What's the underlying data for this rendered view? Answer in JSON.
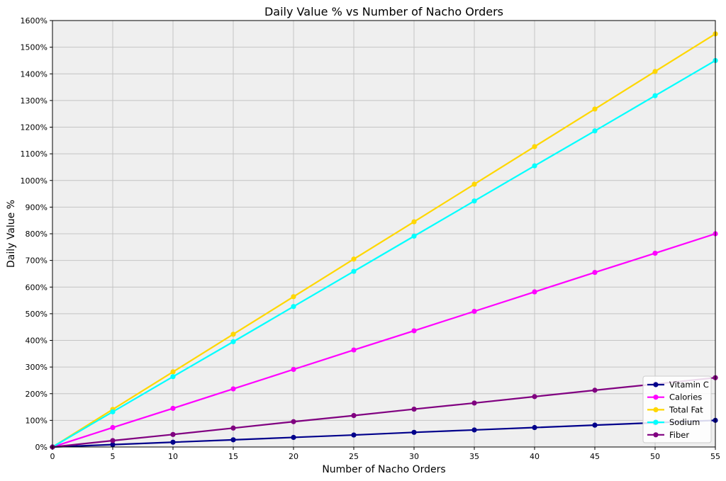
{
  "chart_data": {
    "type": "line",
    "title": "Daily Value % vs Number of Nacho Orders",
    "xlabel": "Number of Nacho Orders",
    "ylabel": "Daily Value %",
    "x": [
      0,
      5,
      10,
      15,
      20,
      25,
      30,
      35,
      40,
      45,
      50,
      55
    ],
    "xlim": [
      0,
      55
    ],
    "ylim": [
      0,
      1600
    ],
    "x_ticks": [
      0,
      5,
      10,
      15,
      20,
      25,
      30,
      35,
      40,
      45,
      50,
      55
    ],
    "y_ticks": [
      0,
      100,
      200,
      300,
      400,
      500,
      600,
      700,
      800,
      900,
      1000,
      1100,
      1200,
      1300,
      1400,
      1500,
      1600
    ],
    "y_tick_labels": [
      "0%",
      "100%",
      "200%",
      "300%",
      "400%",
      "500%",
      "600%",
      "700%",
      "800%",
      "900%",
      "1000%",
      "1100%",
      "1200%",
      "1300%",
      "1400%",
      "1500%",
      "1600%"
    ],
    "grid": true,
    "legend_position": "bottom-right",
    "series": [
      {
        "name": "Vitamin C",
        "color": "#00008b",
        "values": [
          0,
          9,
          18,
          27,
          36,
          45,
          55,
          64,
          73,
          82,
          91,
          100
        ]
      },
      {
        "name": "Calories",
        "color": "#ff00ff",
        "values": [
          0,
          73,
          145,
          218,
          291,
          364,
          436,
          509,
          582,
          655,
          727,
          800
        ]
      },
      {
        "name": "Total Fat",
        "color": "#ffd700",
        "values": [
          0,
          141,
          282,
          423,
          564,
          705,
          845,
          986,
          1127,
          1268,
          1409,
          1550
        ]
      },
      {
        "name": "Sodium",
        "color": "#00ffff",
        "values": [
          0,
          132,
          264,
          395,
          527,
          659,
          791,
          923,
          1055,
          1186,
          1318,
          1450
        ]
      },
      {
        "name": "Fiber",
        "color": "#800080",
        "values": [
          0,
          24,
          47,
          71,
          95,
          118,
          142,
          165,
          189,
          213,
          236,
          260
        ]
      }
    ]
  }
}
